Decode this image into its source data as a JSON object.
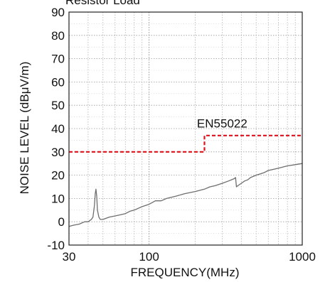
{
  "chart_data": {
    "type": "line",
    "title": "Resistor Load",
    "xlabel": "FREQUENCY(MHz)",
    "ylabel": "NOISE LEVEL (dBμV/m)",
    "x_scale": "log",
    "xlim": [
      30,
      1000
    ],
    "ylim": [
      -10,
      90
    ],
    "x_tick_labels": [
      "30",
      "100",
      "1000"
    ],
    "x_tick_values": [
      30,
      100,
      1000
    ],
    "y_tick_labels": [
      "-10",
      "0",
      "10",
      "20",
      "30",
      "40",
      "50",
      "60",
      "70",
      "80",
      "90"
    ],
    "y_tick_values": [
      -10,
      0,
      10,
      20,
      30,
      40,
      50,
      60,
      70,
      80,
      90
    ],
    "grid": true,
    "series": [
      {
        "name": "",
        "color": "#6e6e6e",
        "x": [
          30,
          32,
          35,
          38,
          40,
          42,
          43,
          44,
          44.5,
          45,
          45.5,
          46,
          47,
          48,
          50,
          55,
          60,
          65,
          70,
          75,
          80,
          90,
          100,
          110,
          120,
          130,
          150,
          170,
          200,
          230,
          250,
          270,
          300,
          330,
          360,
          367,
          372,
          380,
          400,
          420,
          440,
          460,
          500,
          560,
          600,
          700,
          800,
          900,
          1000
        ],
        "y": [
          -2,
          -1.5,
          -1,
          0,
          0,
          1,
          2,
          7,
          12,
          14,
          11,
          5,
          2,
          1,
          1,
          2,
          2.5,
          3,
          3.5,
          4.5,
          5,
          6.5,
          7.5,
          9,
          9,
          10,
          11,
          12,
          13,
          14,
          15,
          15.5,
          16.5,
          17.5,
          18.5,
          19,
          15,
          15.5,
          16.5,
          17.5,
          18,
          19,
          20,
          21,
          22,
          23,
          24,
          24.5,
          25
        ]
      },
      {
        "name": "EN55022",
        "color": "#e0101a",
        "dashed": true,
        "x": [
          30,
          230,
          230,
          1000
        ],
        "y": [
          30,
          30,
          37,
          37
        ]
      }
    ],
    "annotations": [
      {
        "text": "EN55022",
        "x": 300,
        "y": 40.5
      }
    ]
  }
}
